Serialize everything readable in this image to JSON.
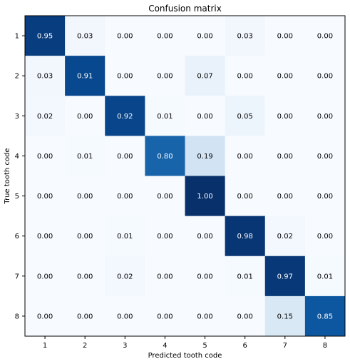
{
  "chart_data": {
    "type": "heatmap",
    "title": "Confusion matrix",
    "xlabel": "Predicted tooth code",
    "ylabel": "True tooth code",
    "x_categories": [
      "1",
      "2",
      "3",
      "4",
      "5",
      "6",
      "7",
      "8"
    ],
    "y_categories": [
      "1",
      "2",
      "3",
      "4",
      "5",
      "6",
      "7",
      "8"
    ],
    "values": [
      [
        0.95,
        0.03,
        0.0,
        0.0,
        0.0,
        0.03,
        0.0,
        0.0
      ],
      [
        0.03,
        0.91,
        0.0,
        0.0,
        0.07,
        0.0,
        0.0,
        0.0
      ],
      [
        0.02,
        0.0,
        0.92,
        0.01,
        0.0,
        0.05,
        0.0,
        0.0
      ],
      [
        0.0,
        0.01,
        0.0,
        0.8,
        0.19,
        0.0,
        0.0,
        0.0
      ],
      [
        0.0,
        0.0,
        0.0,
        0.0,
        1.0,
        0.0,
        0.0,
        0.0
      ],
      [
        0.0,
        0.0,
        0.01,
        0.0,
        0.0,
        0.98,
        0.02,
        0.0
      ],
      [
        0.0,
        0.0,
        0.02,
        0.0,
        0.0,
        0.01,
        0.97,
        0.01
      ],
      [
        0.0,
        0.0,
        0.0,
        0.0,
        0.0,
        0.0,
        0.15,
        0.85
      ]
    ],
    "value_range": [
      0,
      1
    ],
    "colormap": "Blues",
    "colors": {
      "low": "#f7fbff",
      "high": "#08306b",
      "text_dark": "#000000",
      "text_light": "#ffffff"
    },
    "grid": false,
    "legend": "none"
  }
}
